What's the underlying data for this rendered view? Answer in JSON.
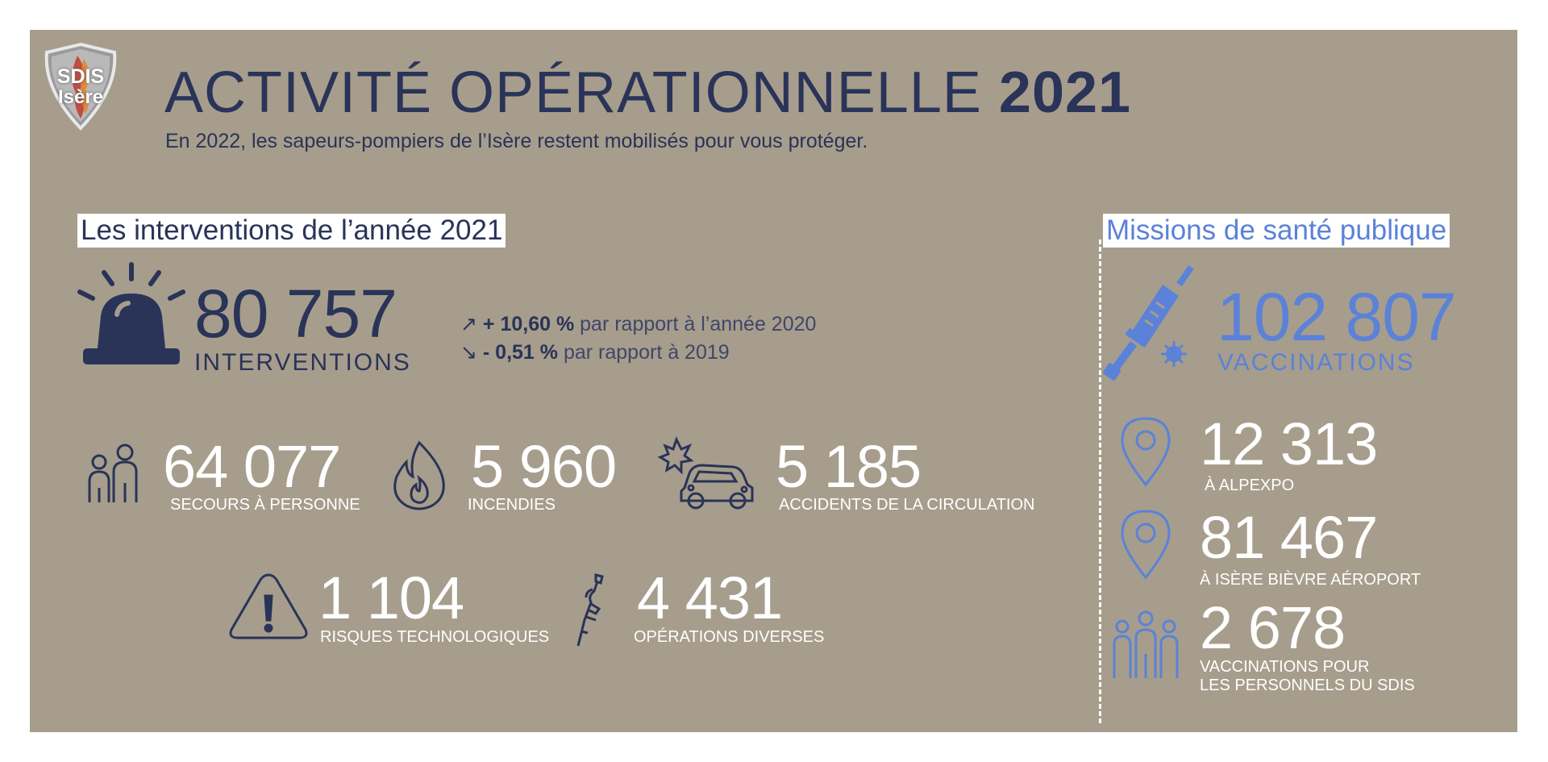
{
  "header": {
    "title_main": "ACTIVITÉ OPÉRATIONNELLE",
    "title_year": "2021",
    "subtitle": "En 2022, les sapeurs-pompiers de l’Isère restent mobilisés pour vous protéger.",
    "logo_text_top": "SDIS",
    "logo_text_bottom": "Isère"
  },
  "interventions": {
    "heading": "Les interventions de l’année 2021",
    "total": {
      "value": "80 757",
      "label": "INTERVENTIONS",
      "trend_up_value": "+ 10,60 %",
      "trend_up_text": "par rapport à l’année 2020",
      "trend_down_value": "- 0,51 %",
      "trend_down_text": "par rapport à 2019"
    },
    "stats": [
      {
        "value": "64 077",
        "label": "SECOURS À PERSONNE",
        "icon": "people-icon"
      },
      {
        "value": "5 960",
        "label": "INCENDIES",
        "icon": "flame-icon"
      },
      {
        "value": "5 185",
        "label": "ACCIDENTS DE LA CIRCULATION",
        "icon": "car-crash-icon"
      },
      {
        "value": "1 104",
        "label": "RISQUES TECHNOLOGIQUES",
        "icon": "warning-icon"
      },
      {
        "value": "4 431",
        "label": "OPÉRATIONS DIVERSES",
        "icon": "tool-icon"
      }
    ]
  },
  "sante": {
    "heading": "Missions de santé publique",
    "total": {
      "value": "102 807",
      "label": "VACCINATIONS"
    },
    "stats": [
      {
        "value": "12 313",
        "label": "À ALPEXPO",
        "icon": "location-pin-icon"
      },
      {
        "value": "81 467",
        "label": "À ISÈRE BIÈVRE AÉROPORT",
        "icon": "location-pin-icon"
      },
      {
        "value": "2 678",
        "label_line1": "VACCINATIONS POUR",
        "label_line2": "LES PERSONNELS DU SDIS",
        "icon": "group-icon"
      }
    ]
  },
  "colors": {
    "background": "#a69d8c",
    "navy": "#2a3358",
    "blue": "#5b82d8",
    "white": "#ffffff",
    "logo_red": "#c0392b"
  }
}
